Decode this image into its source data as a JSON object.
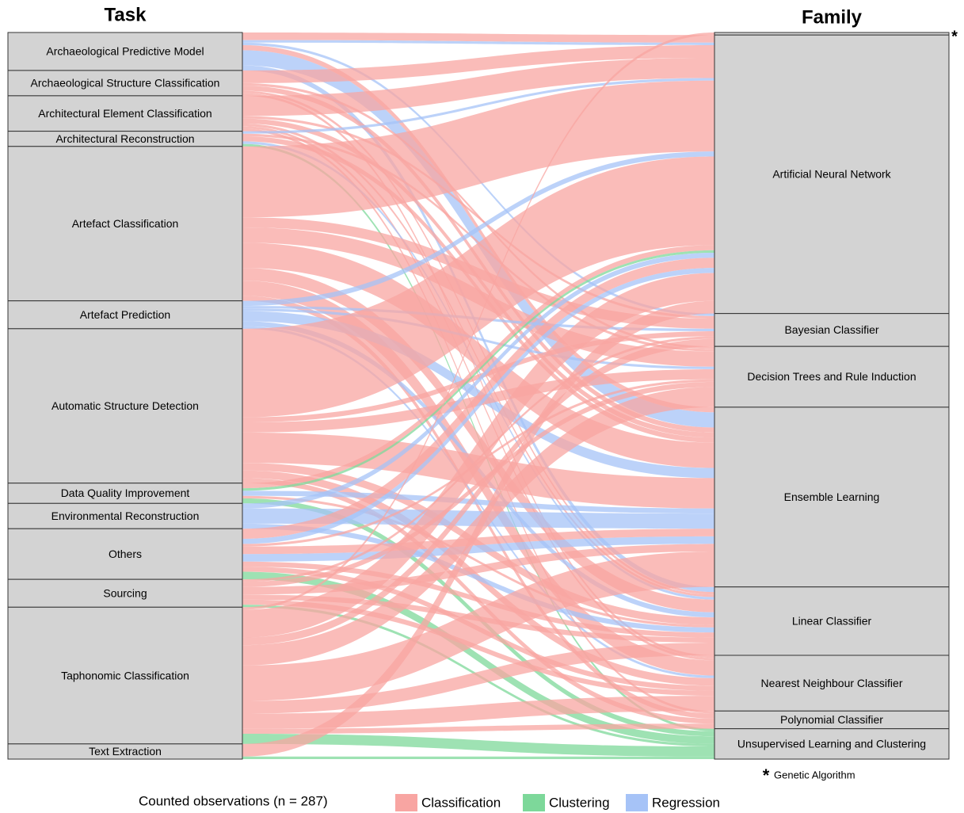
{
  "chart_data": {
    "type": "alluvial",
    "left_title": "Task",
    "right_title": "Family",
    "sources": [
      "Archaeological Predictive Model",
      "Archaeological Structure Classification",
      "Architectural Element Classification",
      "Architectural Reconstruction",
      "Artefact Classification",
      "Artefact Prediction",
      "Automatic Structure Detection",
      "Data Quality Improvement",
      "Environmental Reconstruction",
      "Others",
      "Sourcing",
      "Taphonomic Classification",
      "Text Extraction"
    ],
    "targets": [
      "*",
      "Artificial Neural Network",
      "Bayesian Classifier",
      "Decision Trees and Rule Induction",
      "Ensemble Learning",
      "Linear Classifier",
      "Nearest Neighbour Classifier",
      "Polynomial Classifier",
      "Unsupervised Learning and Clustering"
    ],
    "footnote": {
      "symbol": "*",
      "text": "Genetic Algorithm"
    },
    "legend_title": "Counted observations (n = 287)",
    "types": [
      {
        "name": "Classification",
        "color": "#f8a5a2"
      },
      {
        "name": "Clustering",
        "color": "#7dd89a"
      },
      {
        "name": "Regression",
        "color": "#a6c3f7"
      }
    ],
    "flows": [
      {
        "source": 0,
        "target": 1,
        "type": 0,
        "value": 3
      },
      {
        "source": 0,
        "target": 1,
        "type": 2,
        "value": 1
      },
      {
        "source": 0,
        "target": 2,
        "type": 2,
        "value": 1
      },
      {
        "source": 0,
        "target": 4,
        "type": 2,
        "value": 6
      },
      {
        "source": 0,
        "target": 4,
        "type": 0,
        "value": 2
      },
      {
        "source": 0,
        "target": 5,
        "type": 2,
        "value": 2
      },
      {
        "source": 1,
        "target": 1,
        "type": 0,
        "value": 5
      },
      {
        "source": 1,
        "target": 4,
        "type": 0,
        "value": 2
      },
      {
        "source": 1,
        "target": 3,
        "type": 0,
        "value": 1
      },
      {
        "source": 1,
        "target": 5,
        "type": 0,
        "value": 1
      },
      {
        "source": 1,
        "target": 6,
        "type": 0,
        "value": 1
      },
      {
        "source": 2,
        "target": 1,
        "type": 0,
        "value": 8
      },
      {
        "source": 2,
        "target": 4,
        "type": 0,
        "value": 2
      },
      {
        "source": 2,
        "target": 5,
        "type": 0,
        "value": 1
      },
      {
        "source": 2,
        "target": 6,
        "type": 0,
        "value": 1
      },
      {
        "source": 2,
        "target": 7,
        "type": 0,
        "value": 1
      },
      {
        "source": 2,
        "target": 2,
        "type": 0,
        "value": 1
      },
      {
        "source": 3,
        "target": 1,
        "type": 2,
        "value": 1
      },
      {
        "source": 3,
        "target": 4,
        "type": 0,
        "value": 2
      },
      {
        "source": 3,
        "target": 8,
        "type": 1,
        "value": 1
      },
      {
        "source": 3,
        "target": 5,
        "type": 2,
        "value": 1
      },
      {
        "source": 3,
        "target": 3,
        "type": 0,
        "value": 1
      },
      {
        "source": 4,
        "target": 1,
        "type": 0,
        "value": 28
      },
      {
        "source": 4,
        "target": 2,
        "type": 0,
        "value": 4
      },
      {
        "source": 4,
        "target": 3,
        "type": 0,
        "value": 6
      },
      {
        "source": 4,
        "target": 4,
        "type": 0,
        "value": 10
      },
      {
        "source": 4,
        "target": 5,
        "type": 0,
        "value": 5
      },
      {
        "source": 4,
        "target": 6,
        "type": 0,
        "value": 6
      },
      {
        "source": 4,
        "target": 7,
        "type": 0,
        "value": 2
      },
      {
        "source": 5,
        "target": 1,
        "type": 2,
        "value": 2
      },
      {
        "source": 5,
        "target": 4,
        "type": 2,
        "value": 4
      },
      {
        "source": 5,
        "target": 5,
        "type": 2,
        "value": 2
      },
      {
        "source": 5,
        "target": 2,
        "type": 2,
        "value": 1
      },
      {
        "source": 5,
        "target": 3,
        "type": 2,
        "value": 1
      },
      {
        "source": 5,
        "target": 6,
        "type": 2,
        "value": 1
      },
      {
        "source": 6,
        "target": 1,
        "type": 0,
        "value": 35
      },
      {
        "source": 6,
        "target": 3,
        "type": 0,
        "value": 4
      },
      {
        "source": 6,
        "target": 4,
        "type": 0,
        "value": 12
      },
      {
        "source": 6,
        "target": 5,
        "type": 0,
        "value": 3
      },
      {
        "source": 6,
        "target": 6,
        "type": 0,
        "value": 3
      },
      {
        "source": 6,
        "target": 2,
        "type": 0,
        "value": 2
      },
      {
        "source": 6,
        "target": 7,
        "type": 0,
        "value": 2
      },
      {
        "source": 7,
        "target": 1,
        "type": 1,
        "value": 1
      },
      {
        "source": 7,
        "target": 1,
        "type": 0,
        "value": 2
      },
      {
        "source": 7,
        "target": 4,
        "type": 2,
        "value": 2
      },
      {
        "source": 7,
        "target": 8,
        "type": 1,
        "value": 2
      },
      {
        "source": 7,
        "target": 5,
        "type": 0,
        "value": 1
      },
      {
        "source": 8,
        "target": 4,
        "type": 2,
        "value": 6
      },
      {
        "source": 8,
        "target": 1,
        "type": 2,
        "value": 2
      },
      {
        "source": 8,
        "target": 5,
        "type": 2,
        "value": 2
      },
      {
        "source": 9,
        "target": 1,
        "type": 0,
        "value": 4
      },
      {
        "source": 9,
        "target": 1,
        "type": 2,
        "value": 2
      },
      {
        "source": 9,
        "target": 4,
        "type": 2,
        "value": 3
      },
      {
        "source": 9,
        "target": 4,
        "type": 0,
        "value": 3
      },
      {
        "source": 9,
        "target": 8,
        "type": 1,
        "value": 3
      },
      {
        "source": 9,
        "target": 5,
        "type": 0,
        "value": 2
      },
      {
        "source": 9,
        "target": 6,
        "type": 0,
        "value": 2
      },
      {
        "source": 9,
        "target": 3,
        "type": 0,
        "value": 1
      },
      {
        "source": 10,
        "target": 4,
        "type": 0,
        "value": 3
      },
      {
        "source": 10,
        "target": 5,
        "type": 0,
        "value": 2
      },
      {
        "source": 10,
        "target": 6,
        "type": 0,
        "value": 2
      },
      {
        "source": 10,
        "target": 3,
        "type": 0,
        "value": 2
      },
      {
        "source": 10,
        "target": 8,
        "type": 1,
        "value": 1
      },
      {
        "source": 10,
        "target": 2,
        "type": 0,
        "value": 1
      },
      {
        "source": 11,
        "target": 1,
        "type": 0,
        "value": 11
      },
      {
        "source": 11,
        "target": 2,
        "type": 0,
        "value": 3
      },
      {
        "source": 11,
        "target": 3,
        "type": 0,
        "value": 8
      },
      {
        "source": 11,
        "target": 4,
        "type": 0,
        "value": 14
      },
      {
        "source": 11,
        "target": 5,
        "type": 0,
        "value": 5
      },
      {
        "source": 11,
        "target": 6,
        "type": 0,
        "value": 6
      },
      {
        "source": 11,
        "target": 7,
        "type": 0,
        "value": 2
      },
      {
        "source": 11,
        "target": 8,
        "type": 1,
        "value": 4
      },
      {
        "source": 11,
        "target": 0,
        "type": 0,
        "value": 1
      },
      {
        "source": 12,
        "target": 1,
        "type": 0,
        "value": 5
      },
      {
        "source": 12,
        "target": 8,
        "type": 1,
        "value": 1
      }
    ]
  }
}
